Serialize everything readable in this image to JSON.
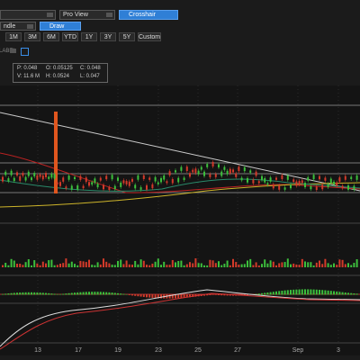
{
  "toolbar": {
    "view": "Pro View",
    "crosshair": "Crosshair",
    "chart_style": "ndle",
    "draw": "Draw",
    "ranges": [
      "1M",
      "3M",
      "6M",
      "YTD",
      "1Y",
      "3Y",
      "5Y",
      "Custom"
    ],
    "label": "LABEL"
  },
  "quote": {
    "price": "P: 0.048",
    "open": "O: 0.05125",
    "close": "C: 0.048",
    "volume": "V: 11.6 M",
    "high": "H: 0.0524",
    "low": "L: 0.047"
  },
  "x_axis": [
    "13",
    "17",
    "19",
    "23",
    "25",
    "27",
    "Sep",
    "3"
  ]
}
